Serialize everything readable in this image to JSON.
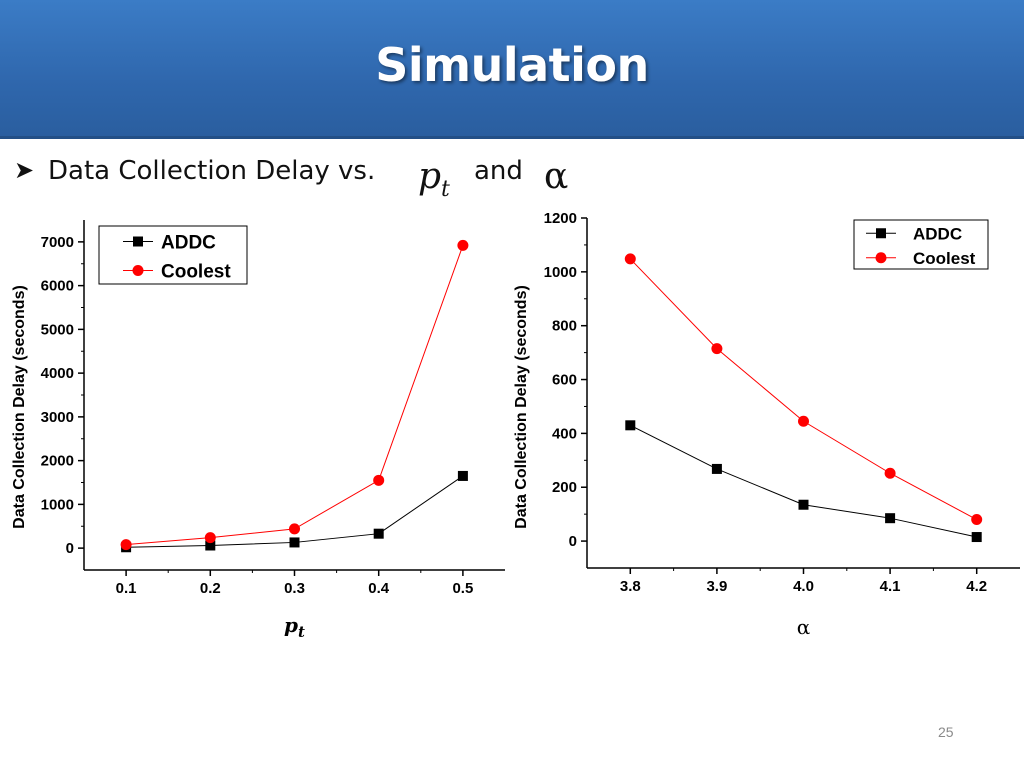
{
  "slide": {
    "title": "Simulation",
    "bullet_text": "Data Collection Delay vs.",
    "bullet_symbol_1": "p",
    "bullet_symbol_1_sub": "t",
    "bullet_and": "and",
    "bullet_symbol_2": "α",
    "page_number": "25"
  },
  "colors": {
    "title_band": "#2f67ad",
    "addc": "#000000",
    "coolest": "#ff0000"
  },
  "chart_data": [
    {
      "type": "line",
      "xlabel": "p",
      "xlabel_sub": "t",
      "ylabel": "Data Collection Delay (seconds)",
      "categories": [
        "0.1",
        "0.2",
        "0.3",
        "0.4",
        "0.5"
      ],
      "x": [
        0.1,
        0.2,
        0.3,
        0.4,
        0.5
      ],
      "xlim": [
        0.05,
        0.55
      ],
      "ylim": [
        -500,
        7500
      ],
      "yticks": [
        0,
        1000,
        2000,
        3000,
        4000,
        5000,
        6000,
        7000
      ],
      "ytick_labels": [
        "0",
        "1000",
        "2000",
        "3000",
        "4000",
        "5000",
        "6000",
        "7000"
      ],
      "legend_position": "top-left",
      "grid": false,
      "series": [
        {
          "name": "ADDC",
          "marker": "square",
          "values": [
            20,
            60,
            130,
            330,
            1650
          ]
        },
        {
          "name": "Coolest",
          "marker": "circle",
          "values": [
            80,
            240,
            440,
            1550,
            6920
          ]
        }
      ]
    },
    {
      "type": "line",
      "xlabel": "α",
      "ylabel": "Data Collection Delay (seconds)",
      "categories": [
        "3.8",
        "3.9",
        "4.0",
        "4.1",
        "4.2"
      ],
      "x": [
        3.8,
        3.9,
        4.0,
        4.1,
        4.2
      ],
      "xlim": [
        3.75,
        4.25
      ],
      "ylim": [
        -100,
        1200
      ],
      "yticks": [
        0,
        200,
        400,
        600,
        800,
        1000,
        1200
      ],
      "ytick_labels": [
        "0",
        "200",
        "400",
        "600",
        "800",
        "1000",
        "1200"
      ],
      "legend_position": "top-right",
      "grid": false,
      "series": [
        {
          "name": "ADDC",
          "marker": "square",
          "values": [
            430,
            268,
            135,
            85,
            15
          ]
        },
        {
          "name": "Coolest",
          "marker": "circle",
          "values": [
            1048,
            715,
            445,
            252,
            80
          ]
        }
      ]
    }
  ]
}
